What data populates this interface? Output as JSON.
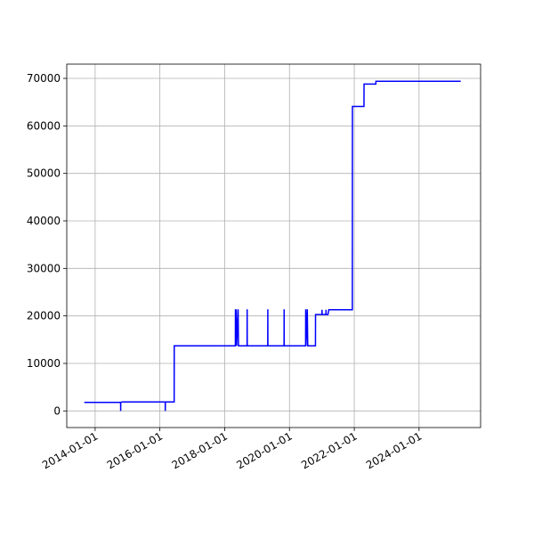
{
  "chart_data": {
    "type": "line",
    "x": [
      "2013-09-01",
      "2014-10-15",
      "2014-10-16",
      "2014-10-17",
      "2014-11-01",
      "2016-03-01",
      "2016-03-02",
      "2016-03-03",
      "2016-06-10",
      "2016-06-11",
      "2018-05-01",
      "2018-05-02",
      "2018-05-05",
      "2018-05-10",
      "2018-05-15",
      "2018-06-01",
      "2018-06-05",
      "2018-09-10",
      "2018-09-11",
      "2018-09-12",
      "2019-05-01",
      "2019-05-02",
      "2019-05-03",
      "2019-11-01",
      "2019-11-02",
      "2019-11-03",
      "2020-07-01",
      "2020-07-02",
      "2020-07-05",
      "2020-07-20",
      "2020-07-25",
      "2020-10-20",
      "2020-10-21",
      "2021-01-01",
      "2021-01-02",
      "2021-01-03",
      "2021-02-15",
      "2021-02-16",
      "2021-02-17",
      "2021-03-10",
      "2021-03-20",
      "2021-12-10",
      "2021-12-11",
      "2022-04-20",
      "2022-04-21",
      "2022-09-01",
      "2022-09-02",
      "2025-04-15"
    ],
    "series": [
      {
        "color": "#0000ff",
        "values": [
          1800,
          1800,
          0,
          1800,
          1900,
          1900,
          0,
          1900,
          1900,
          13700,
          13700,
          21400,
          13700,
          21400,
          13700,
          21400,
          13700,
          13700,
          21400,
          13700,
          13700,
          21400,
          13700,
          13700,
          21400,
          13700,
          13700,
          21400,
          13700,
          21400,
          13700,
          13700,
          20300,
          20300,
          21300,
          20300,
          20300,
          21300,
          20300,
          20300,
          21300,
          21300,
          64100,
          64100,
          68800,
          68800,
          69400,
          69400
        ]
      }
    ],
    "xlim": [
      "2013-02-15",
      "2025-11-25"
    ],
    "xticks": [
      "2014-01-01",
      "2016-01-01",
      "2018-01-01",
      "2020-01-01",
      "2022-01-01",
      "2024-01-01"
    ],
    "ylim": [
      -3500,
      73000
    ],
    "yticks": [
      0,
      10000,
      20000,
      30000,
      40000,
      50000,
      60000,
      70000
    ],
    "grid": true
  }
}
